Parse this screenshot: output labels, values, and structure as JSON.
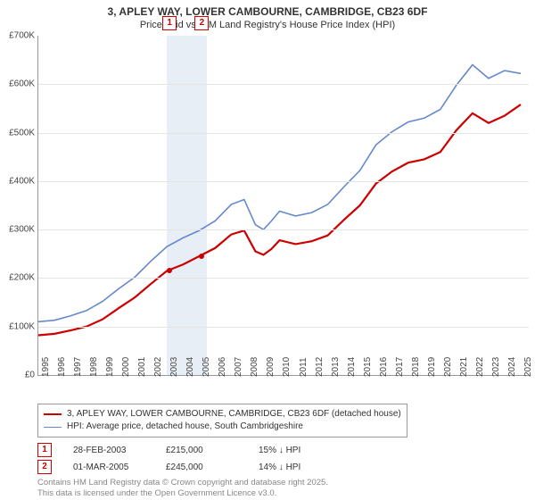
{
  "header": {
    "title": "3, APLEY WAY, LOWER CAMBOURNE, CAMBRIDGE, CB23 6DF",
    "subtitle": "Price paid vs. HM Land Registry's House Price Index (HPI)"
  },
  "chart": {
    "type": "line",
    "background_color": "#ffffff",
    "grid_color": "#e5e5e5",
    "axis_color": "#999999",
    "label_fontsize": 10,
    "label_color": "#444444",
    "xlim": [
      1995,
      2025.5
    ],
    "ylim": [
      0,
      700000
    ],
    "ytick_step": 100000,
    "yticks": [
      {
        "v": 0,
        "label": "£0"
      },
      {
        "v": 100000,
        "label": "£100K"
      },
      {
        "v": 200000,
        "label": "£200K"
      },
      {
        "v": 300000,
        "label": "£300K"
      },
      {
        "v": 400000,
        "label": "£400K"
      },
      {
        "v": 500000,
        "label": "£500K"
      },
      {
        "v": 600000,
        "label": "£600K"
      },
      {
        "v": 700000,
        "label": "£700K"
      }
    ],
    "xticks": [
      1995,
      1996,
      1997,
      1998,
      1999,
      2000,
      2001,
      2002,
      2003,
      2004,
      2005,
      2006,
      2007,
      2008,
      2009,
      2010,
      2011,
      2012,
      2013,
      2014,
      2015,
      2016,
      2017,
      2018,
      2019,
      2020,
      2021,
      2022,
      2023,
      2024,
      2025
    ],
    "band": {
      "start": 2003.0,
      "end": 2005.5,
      "color": "#e8eef5"
    },
    "series": [
      {
        "name": "price_paid",
        "label": "3, APLEY WAY, LOWER CAMBOURNE, CAMBRIDGE, CB23 6DF (detached house)",
        "color": "#cc0000",
        "line_width": 2.2,
        "points": [
          [
            1995,
            82000
          ],
          [
            1996,
            85000
          ],
          [
            1997,
            92000
          ],
          [
            1998,
            100000
          ],
          [
            1999,
            115000
          ],
          [
            2000,
            138000
          ],
          [
            2001,
            160000
          ],
          [
            2002,
            188000
          ],
          [
            2003,
            215000
          ],
          [
            2004,
            228000
          ],
          [
            2005,
            245000
          ],
          [
            2006,
            262000
          ],
          [
            2007,
            290000
          ],
          [
            2007.8,
            298000
          ],
          [
            2008.5,
            255000
          ],
          [
            2009,
            248000
          ],
          [
            2009.5,
            260000
          ],
          [
            2010,
            278000
          ],
          [
            2011,
            270000
          ],
          [
            2012,
            276000
          ],
          [
            2013,
            288000
          ],
          [
            2014,
            320000
          ],
          [
            2015,
            350000
          ],
          [
            2016,
            395000
          ],
          [
            2017,
            420000
          ],
          [
            2018,
            438000
          ],
          [
            2019,
            445000
          ],
          [
            2020,
            460000
          ],
          [
            2021,
            505000
          ],
          [
            2022,
            540000
          ],
          [
            2023,
            520000
          ],
          [
            2024,
            535000
          ],
          [
            2025,
            558000
          ]
        ]
      },
      {
        "name": "hpi",
        "label": "HPI: Average price, detached house, South Cambridgeshire",
        "color": "#6688cc",
        "line_width": 1.6,
        "points": [
          [
            1995,
            110000
          ],
          [
            1996,
            113000
          ],
          [
            1997,
            122000
          ],
          [
            1998,
            133000
          ],
          [
            1999,
            152000
          ],
          [
            2000,
            178000
          ],
          [
            2001,
            202000
          ],
          [
            2002,
            235000
          ],
          [
            2003,
            265000
          ],
          [
            2004,
            283000
          ],
          [
            2005,
            298000
          ],
          [
            2006,
            318000
          ],
          [
            2007,
            352000
          ],
          [
            2007.8,
            362000
          ],
          [
            2008.5,
            310000
          ],
          [
            2009,
            300000
          ],
          [
            2009.5,
            318000
          ],
          [
            2010,
            338000
          ],
          [
            2011,
            328000
          ],
          [
            2012,
            335000
          ],
          [
            2013,
            352000
          ],
          [
            2014,
            388000
          ],
          [
            2015,
            422000
          ],
          [
            2016,
            475000
          ],
          [
            2017,
            502000
          ],
          [
            2018,
            522000
          ],
          [
            2019,
            530000
          ],
          [
            2020,
            548000
          ],
          [
            2021,
            598000
          ],
          [
            2022,
            640000
          ],
          [
            2023,
            612000
          ],
          [
            2024,
            628000
          ],
          [
            2025,
            622000
          ]
        ]
      }
    ],
    "markers": [
      {
        "n": "1",
        "x": 2003.16,
        "y": 215000
      },
      {
        "n": "2",
        "x": 2005.17,
        "y": 245000
      }
    ]
  },
  "legend": {
    "series1": "3, APLEY WAY, LOWER CAMBOURNE, CAMBRIDGE, CB23 6DF (detached house)",
    "series2": "HPI: Average price, detached house, South Cambridgeshire"
  },
  "transactions": [
    {
      "n": "1",
      "date": "28-FEB-2003",
      "price": "£215,000",
      "delta": "15% ↓ HPI"
    },
    {
      "n": "2",
      "date": "01-MAR-2005",
      "price": "£245,000",
      "delta": "14% ↓ HPI"
    }
  ],
  "footer": {
    "line1": "Contains HM Land Registry data © Crown copyright and database right 2025.",
    "line2": "This data is licensed under the Open Government Licence v3.0."
  }
}
